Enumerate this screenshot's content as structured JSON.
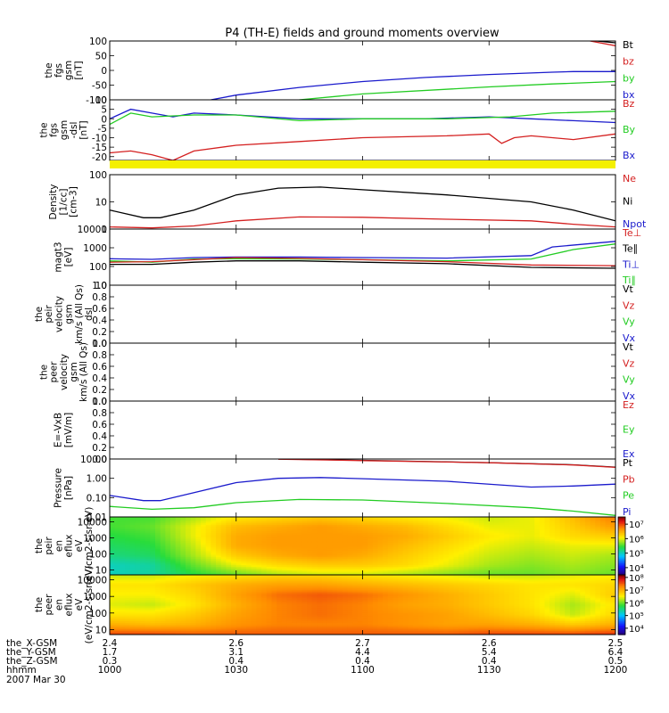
{
  "title": "P4 (TH-E) fields and ground moments overview",
  "colors": {
    "black": "#000000",
    "red": "#d42020",
    "green": "#22cc22",
    "blue": "#1a1acc",
    "yellow": "#f4f000",
    "axis": "#000000"
  },
  "chart_data": [
    {
      "id": "fgs",
      "type": "line",
      "ylabel": [
        "the",
        "fgs",
        "gsm",
        "[nT]"
      ],
      "ylim": [
        -100,
        100
      ],
      "yticks": [
        "100",
        "50",
        "0",
        "-50",
        "-100"
      ],
      "ytick_values": [
        100,
        50,
        0,
        -50,
        -100
      ],
      "legend": [
        {
          "label": "Bt",
          "color": "#000000"
        },
        {
          "label": "bz",
          "color": "#d42020"
        },
        {
          "label": "by",
          "color": "#22cc22"
        },
        {
          "label": "bx",
          "color": "#1a1acc"
        }
      ],
      "series": [
        {
          "name": "bx",
          "color": "#1a1acc",
          "x": [
            1024,
            1030,
            1045,
            1100,
            1115,
            1130,
            1145,
            1150,
            1200
          ],
          "y": [
            -100,
            -84,
            -58,
            -38,
            -24,
            -14,
            -6,
            -4,
            -4
          ]
        },
        {
          "name": "by",
          "color": "#22cc22",
          "x": [
            1045,
            1100,
            1130,
            1145,
            1200
          ],
          "y": [
            -100,
            -80,
            -56,
            -46,
            -38
          ]
        },
        {
          "name": "bz",
          "color": "#d42020",
          "x": [
            1154,
            1200
          ],
          "y": [
            100,
            84
          ]
        },
        {
          "name": "Bt",
          "color": "#000000",
          "x": [
            1154,
            1200
          ],
          "y": [
            102,
            94
          ]
        }
      ]
    },
    {
      "id": "fgs_dsl",
      "type": "line",
      "ylabel": [
        "the",
        "fgs",
        "gsm",
        "-dsl",
        "[nT]"
      ],
      "ylim": [
        -22,
        10
      ],
      "yticks": [
        "10",
        "5",
        "0",
        "-5",
        "-10",
        "-15",
        "-20"
      ],
      "ytick_values": [
        10,
        5,
        0,
        -5,
        -10,
        -15,
        -20
      ],
      "legend": [
        {
          "label": "Bz",
          "color": "#d42020"
        },
        {
          "label": "By",
          "color": "#22cc22"
        },
        {
          "label": "Bx",
          "color": "#1a1acc"
        }
      ],
      "series": [
        {
          "name": "Bx",
          "color": "#1a1acc",
          "x": [
            1000,
            1005,
            1010,
            1015,
            1020,
            1030,
            1045,
            1100,
            1115,
            1130,
            1140,
            1150,
            1200
          ],
          "y": [
            0,
            5,
            3,
            1,
            3,
            2,
            0,
            0,
            0,
            1,
            0,
            -1,
            -2
          ]
        },
        {
          "name": "By",
          "color": "#22cc22",
          "x": [
            1000,
            1005,
            1010,
            1020,
            1030,
            1045,
            1100,
            1120,
            1135,
            1145,
            1200
          ],
          "y": [
            -3,
            3,
            1,
            2,
            2,
            -1,
            0,
            0,
            1,
            3,
            4
          ]
        },
        {
          "name": "Bz",
          "color": "#d42020",
          "x": [
            1000,
            1005,
            1010,
            1015,
            1020,
            1030,
            1045,
            1100,
            1120,
            1130,
            1133,
            1136,
            1140,
            1150,
            1200
          ],
          "y": [
            -18,
            -17,
            -19,
            -22,
            -17,
            -14,
            -12,
            -10,
            -9,
            -8,
            -13,
            -10,
            -9,
            -11,
            -8
          ]
        }
      ]
    },
    {
      "id": "state_bar",
      "type": "bar",
      "note": "state flag bar",
      "values": [
        1
      ]
    },
    {
      "id": "density",
      "type": "line",
      "scale": "log",
      "ylabel": [
        "Density",
        "[1/cc]",
        "[cm-3]"
      ],
      "ylim": [
        1,
        100
      ],
      "yticks": [
        "100",
        "10",
        "1"
      ],
      "ytick_values": [
        100,
        10,
        1
      ],
      "legend": [
        {
          "label": "Ne",
          "color": "#d42020"
        },
        {
          "label": "Ni",
          "color": "#000000"
        },
        {
          "label": "Npot",
          "color": "#1a1acc"
        }
      ],
      "series": [
        {
          "name": "Ni",
          "color": "#000000",
          "x": [
            1000,
            1008,
            1012,
            1020,
            1030,
            1040,
            1050,
            1100,
            1120,
            1140,
            1150,
            1200
          ],
          "y": [
            5,
            2.6,
            2.6,
            5,
            18,
            32,
            35,
            28,
            18,
            10,
            5,
            2
          ]
        },
        {
          "name": "Ne",
          "color": "#d42020",
          "x": [
            1000,
            1010,
            1020,
            1030,
            1045,
            1100,
            1120,
            1140,
            1150,
            1200
          ],
          "y": [
            1.2,
            1.1,
            1.3,
            2.0,
            2.8,
            2.7,
            2.3,
            2.0,
            1.5,
            1.2
          ]
        }
      ]
    },
    {
      "id": "mag",
      "type": "line",
      "scale": "log",
      "ylabel": [
        "magt3",
        "[eV]"
      ],
      "ylim": [
        10,
        10000
      ],
      "yticks": [
        "10000",
        "1000",
        "100",
        "10"
      ],
      "ytick_values": [
        10000,
        1000,
        100,
        10
      ],
      "legend": [
        {
          "label": "Te⊥",
          "color": "#d42020"
        },
        {
          "label": "Te∥",
          "color": "#000000"
        },
        {
          "label": "Ti⊥",
          "color": "#1a1acc"
        },
        {
          "label": "Ti∥",
          "color": "#22cc22"
        }
      ],
      "series": [
        {
          "name": "Ti⊥",
          "color": "#1a1acc",
          "x": [
            1000,
            1010,
            1020,
            1030,
            1045,
            1100,
            1120,
            1140,
            1145,
            1200
          ],
          "y": [
            260,
            240,
            300,
            320,
            320,
            300,
            280,
            380,
            1100,
            2200
          ]
        },
        {
          "name": "Ti∥",
          "color": "#22cc22",
          "x": [
            1000,
            1010,
            1020,
            1030,
            1045,
            1100,
            1120,
            1140,
            1150,
            1200
          ],
          "y": [
            200,
            170,
            250,
            260,
            250,
            230,
            200,
            250,
            800,
            1600
          ]
        },
        {
          "name": "Te⊥",
          "color": "#d42020",
          "x": [
            1000,
            1010,
            1020,
            1030,
            1045,
            1100,
            1120,
            1140,
            1200
          ],
          "y": [
            170,
            180,
            230,
            300,
            270,
            230,
            180,
            120,
            110
          ]
        },
        {
          "name": "Te∥",
          "color": "#000000",
          "x": [
            1000,
            1010,
            1020,
            1030,
            1045,
            1100,
            1120,
            1140,
            1200
          ],
          "y": [
            130,
            130,
            170,
            200,
            200,
            170,
            140,
            90,
            80
          ]
        }
      ]
    },
    {
      "id": "peir_vel",
      "type": "line",
      "ylabel": [
        "the",
        "peir",
        "velocity",
        "gsm",
        "km/s (All Qs)",
        "dsl"
      ],
      "ylim": [
        0,
        1
      ],
      "yticks": [
        "1.0",
        "0.8",
        "0.6",
        "0.4",
        "0.2",
        "0.0"
      ],
      "ytick_values": [
        1,
        0.8,
        0.6,
        0.4,
        0.2,
        0
      ],
      "legend": [
        {
          "label": "Vt",
          "color": "#000000"
        },
        {
          "label": "Vz",
          "color": "#d42020"
        },
        {
          "label": "Vy",
          "color": "#22cc22"
        },
        {
          "label": "Vx",
          "color": "#1a1acc"
        }
      ],
      "series": []
    },
    {
      "id": "peer_vel",
      "type": "line",
      "ylabel": [
        "the",
        "peer",
        "velocity",
        "gsm",
        "km/s (All Qs)"
      ],
      "ylim": [
        0,
        1
      ],
      "yticks": [
        "1.0",
        "0.8",
        "0.6",
        "0.4",
        "0.2",
        "0.0"
      ],
      "ytick_values": [
        1,
        0.8,
        0.6,
        0.4,
        0.2,
        0
      ],
      "legend": [
        {
          "label": "Vt",
          "color": "#000000"
        },
        {
          "label": "Vz",
          "color": "#d42020"
        },
        {
          "label": "Vy",
          "color": "#22cc22"
        },
        {
          "label": "Vx",
          "color": "#1a1acc"
        }
      ],
      "series": []
    },
    {
      "id": "efield",
      "type": "line",
      "ylabel": [
        "E=-VxB",
        "[mV/m]"
      ],
      "ylim": [
        0,
        1
      ],
      "yticks": [
        "1.0",
        "0.8",
        "0.6",
        "0.4",
        "0.2",
        "0.0"
      ],
      "ytick_values": [
        1,
        0.8,
        0.6,
        0.4,
        0.2,
        0
      ],
      "legend": [
        {
          "label": "Ez",
          "color": "#d42020"
        },
        {
          "label": "Ey",
          "color": "#22cc22"
        },
        {
          "label": "Ex",
          "color": "#1a1acc"
        }
      ],
      "series": []
    },
    {
      "id": "pressure",
      "type": "line",
      "scale": "log",
      "ylabel": [
        "Pressure",
        "[nPa]"
      ],
      "ylim": [
        0.01,
        10
      ],
      "yticks": [
        "10.00",
        "1.00",
        "0.10",
        "0.01"
      ],
      "ytick_values": [
        10,
        1,
        0.1,
        0.01
      ],
      "legend": [
        {
          "label": "Pt",
          "color": "#000000"
        },
        {
          "label": "Pb",
          "color": "#d42020"
        },
        {
          "label": "Pe",
          "color": "#22cc22"
        },
        {
          "label": "Pi",
          "color": "#1a1acc"
        }
      ],
      "series": [
        {
          "name": "Pt",
          "color": "#000000",
          "x": [
            1040,
            1100,
            1130,
            1150,
            1200
          ],
          "y": [
            10,
            8.5,
            6.5,
            5.0,
            3.8
          ]
        },
        {
          "name": "Pb",
          "color": "#d42020",
          "x": [
            1040,
            1100,
            1130,
            1150,
            1200
          ],
          "y": [
            9.8,
            8.3,
            6.4,
            4.9,
            3.7
          ]
        },
        {
          "name": "Pi",
          "color": "#1a1acc",
          "x": [
            1000,
            1008,
            1012,
            1020,
            1030,
            1040,
            1050,
            1100,
            1120,
            1140,
            1150,
            1200
          ],
          "y": [
            0.13,
            0.07,
            0.07,
            0.18,
            0.6,
            1.0,
            1.1,
            0.95,
            0.7,
            0.35,
            0.4,
            0.5
          ]
        },
        {
          "name": "Pe",
          "color": "#22cc22",
          "x": [
            1000,
            1010,
            1020,
            1030,
            1045,
            1100,
            1120,
            1140,
            1150,
            1200
          ],
          "y": [
            0.035,
            0.025,
            0.03,
            0.055,
            0.08,
            0.075,
            0.05,
            0.03,
            0.02,
            0.012
          ]
        }
      ]
    },
    {
      "id": "peir_spec",
      "type": "heatmap",
      "ylabel": [
        "the",
        "peir",
        "en",
        "eflux",
        "eV",
        "(eV/cm2-s-sr-eV)"
      ],
      "ylim": [
        5,
        20000
      ],
      "yticks": [
        "10000",
        "1000",
        "100",
        "10"
      ],
      "ytick_values": [
        10000,
        1000,
        100,
        10
      ],
      "colorbar": {
        "labels": [
          "10⁷",
          "10⁶",
          "10⁵",
          "10⁴"
        ],
        "values": [
          7,
          6,
          5,
          4
        ],
        "range": [
          3.5,
          7.5
        ]
      },
      "x": [
        1000,
        1010,
        1020,
        1030,
        1040,
        1050,
        1100,
        1110,
        1120,
        1130,
        1140,
        1150,
        1200
      ],
      "y_energy": [
        10,
        30,
        100,
        300,
        1000,
        3000,
        10000
      ],
      "z_log10_flux": [
        [
          5.0,
          5.1,
          5.4,
          5.6,
          5.8,
          5.9,
          5.9,
          5.8,
          5.7,
          5.6,
          5.6,
          5.7,
          5.6
        ],
        [
          5.0,
          5.1,
          5.6,
          6.0,
          6.2,
          6.3,
          6.3,
          6.2,
          6.0,
          5.8,
          5.7,
          5.8,
          5.7
        ],
        [
          5.2,
          5.3,
          5.8,
          6.3,
          6.5,
          6.6,
          6.5,
          6.3,
          6.1,
          5.9,
          5.8,
          5.9,
          5.8
        ],
        [
          5.3,
          5.4,
          5.9,
          6.5,
          6.6,
          6.6,
          6.6,
          6.4,
          6.2,
          6.0,
          5.9,
          6.0,
          6.0
        ],
        [
          5.4,
          5.5,
          6.0,
          6.5,
          6.6,
          6.6,
          6.6,
          6.5,
          6.3,
          6.1,
          6.0,
          6.2,
          6.3
        ],
        [
          5.5,
          5.6,
          6.0,
          6.4,
          6.5,
          6.6,
          6.5,
          6.4,
          6.2,
          6.0,
          6.0,
          6.3,
          6.6
        ],
        [
          5.5,
          5.5,
          5.8,
          6.1,
          6.2,
          6.3,
          6.2,
          6.1,
          6.0,
          5.9,
          6.0,
          6.4,
          6.8
        ]
      ]
    },
    {
      "id": "peer_spec",
      "type": "heatmap",
      "ylabel": [
        "the",
        "peer",
        "en",
        "eflux",
        "eV",
        "(eV/cm2-s-sr-eV)"
      ],
      "ylim": [
        5,
        20000
      ],
      "yticks": [
        "10000",
        "1000",
        "100",
        "10"
      ],
      "ytick_values": [
        10000,
        1000,
        100,
        10
      ],
      "colorbar": {
        "labels": [
          "10⁸",
          "10⁷",
          "10⁶",
          "10⁵",
          "10⁴"
        ],
        "values": [
          8,
          7,
          6,
          5,
          4
        ],
        "range": [
          3.5,
          8.2
        ]
      },
      "x": [
        1000,
        1010,
        1020,
        1030,
        1040,
        1050,
        1100,
        1110,
        1120,
        1130,
        1140,
        1150,
        1200
      ],
      "y_energy": [
        10,
        30,
        100,
        300,
        1000,
        3000,
        10000
      ],
      "z_log10_flux": [
        [
          7.6,
          7.6,
          7.5,
          7.5,
          7.5,
          7.5,
          7.5,
          7.5,
          7.5,
          7.6,
          7.6,
          7.6,
          7.7
        ],
        [
          7.0,
          6.9,
          7.0,
          7.2,
          7.3,
          7.3,
          7.3,
          7.2,
          7.1,
          7.1,
          7.0,
          6.8,
          7.0
        ],
        [
          6.6,
          6.6,
          6.8,
          7.1,
          7.3,
          7.4,
          7.3,
          7.2,
          7.1,
          6.9,
          6.7,
          6.3,
          6.7
        ],
        [
          6.4,
          6.3,
          6.6,
          7.0,
          7.3,
          7.4,
          7.3,
          7.1,
          7.0,
          6.8,
          6.6,
          6.2,
          6.6
        ],
        [
          6.5,
          6.5,
          6.7,
          7.1,
          7.4,
          7.5,
          7.4,
          7.2,
          7.0,
          6.8,
          6.6,
          6.4,
          6.8
        ],
        [
          6.6,
          6.6,
          6.8,
          7.0,
          7.1,
          7.1,
          7.0,
          6.9,
          6.8,
          6.7,
          6.6,
          6.6,
          6.7
        ],
        [
          6.3,
          6.3,
          6.5,
          6.6,
          6.7,
          6.7,
          6.6,
          6.5,
          6.4,
          6.3,
          6.3,
          6.4,
          6.5
        ]
      ]
    }
  ],
  "xaxis": {
    "xlim": [
      1000,
      1200
    ],
    "tick_x": [
      1000,
      1030,
      1100,
      1130,
      1200
    ],
    "rows": [
      {
        "label": "the_X-GSM",
        "values": [
          "2.4",
          "2.6",
          "2.7",
          "2.6",
          "2.5"
        ]
      },
      {
        "label": "the_Y-GSM",
        "values": [
          "1.7",
          "3.1",
          "4.4",
          "5.4",
          "6.4"
        ]
      },
      {
        "label": "the_Z-GSM",
        "values": [
          "0.3",
          "0.4",
          "0.4",
          "0.4",
          "0.5"
        ]
      },
      {
        "label": "hhmm",
        "values": [
          "1000",
          "1030",
          "1100",
          "1130",
          "1200"
        ]
      }
    ],
    "date": "2007 Mar 30"
  }
}
